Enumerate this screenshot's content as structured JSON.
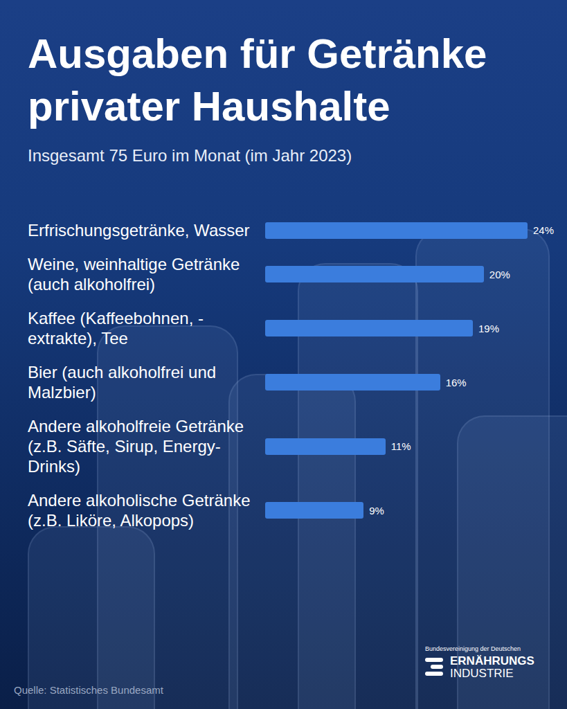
{
  "chart_data": {
    "type": "bar",
    "orientation": "horizontal",
    "title": "Ausgaben für Getränke privater Haushalte",
    "subtitle": "Insgesamt 75 Euro im Monat (im Jahr 2023)",
    "categories": [
      "Erfrischungsgetränke, Wasser",
      "Weine, weinhaltige Getränke (auch alkoholfrei)",
      "Kaffee (Kaffeebohnen, -extrakte), Tee",
      "Bier (auch alkoholfrei und Malzbier)",
      "Andere alkoholfreie Getränke (z.B. Säfte, Sirup, Energy-Drinks)",
      "Andere alkoholische Getränke (z.B. Liköre, Alkopops)"
    ],
    "values": [
      24,
      20,
      19,
      16,
      11,
      9
    ],
    "value_labels": [
      "24%",
      "20%",
      "19%",
      "16%",
      "11%",
      "9%"
    ],
    "color": "#3b7ddd",
    "data_labels": true,
    "tick_labels": false,
    "grid": false,
    "source": "Quelle: Statistisches Bundesamt",
    "annotations": [
      "Bundesvereinigung der Deutschen",
      "ERNÄHRUNGS",
      "INDUSTRIE"
    ]
  }
}
